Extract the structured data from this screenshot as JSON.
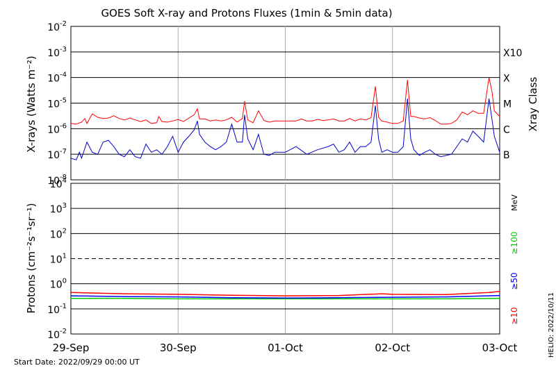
{
  "title": "GOES Soft X-ray and Protons Fluxes   (1min & 5min data)",
  "start_date": "Start Date: 2022/09/29 00:00 UT",
  "footer_tag": "HELIO: 2022/10/11",
  "x_ticks": [
    "29-Sep",
    "30-Sep",
    "01-Oct",
    "02-Oct",
    "03-Oct"
  ],
  "xray_panel": {
    "ylabel": "X-rays (Watts m⁻²)",
    "right_label": "Xray Class",
    "y_ticks": [
      {
        "base": "10",
        "exp": "-2"
      },
      {
        "base": "10",
        "exp": "-3"
      },
      {
        "base": "10",
        "exp": "-4"
      },
      {
        "base": "10",
        "exp": "-5"
      },
      {
        "base": "10",
        "exp": "-6"
      },
      {
        "base": "10",
        "exp": "-7"
      },
      {
        "base": "10",
        "exp": "-8"
      }
    ],
    "classes": [
      "X10",
      "X",
      "M",
      "C",
      "B"
    ]
  },
  "proton_panel": {
    "ylabel": "Protons (cm⁻²s⁻¹sr⁻¹)",
    "y_ticks": [
      {
        "base": "10",
        "exp": "4"
      },
      {
        "base": "10",
        "exp": "3"
      },
      {
        "base": "10",
        "exp": "2"
      },
      {
        "base": "10",
        "exp": "1"
      },
      {
        "base": "10",
        "exp": "0"
      },
      {
        "base": "10",
        "exp": "-1"
      },
      {
        "base": "10",
        "exp": "-2"
      }
    ],
    "unit_label": "MeV",
    "energy_labels": [
      {
        "text": "≥100",
        "color": "#00cc00"
      },
      {
        "text": "≥50",
        "color": "#0000ff"
      },
      {
        "text": "≥10",
        "color": "#ff0000"
      }
    ]
  },
  "colors": {
    "xray_long": "#ff0000",
    "xray_short": "#0000cc",
    "proton_10": "#ff0000",
    "proton_50": "#0000ff",
    "proton_100": "#00cc00"
  },
  "chart_data": [
    {
      "type": "line",
      "title": "GOES Soft X-ray and Protons Fluxes   (1min & 5min data)",
      "ylabel": "X-rays (Watts m⁻²)",
      "y_scale": "log",
      "ylim": [
        1e-08,
        0.01
      ],
      "x_ticks": [
        "29-Sep",
        "30-Sep",
        "01-Oct",
        "02-Oct",
        "03-Oct"
      ],
      "xlim_days": [
        0,
        4
      ],
      "grid": true,
      "x_unit": "days since 29-Sep 00:00 UT",
      "series": [
        {
          "name": "xray_long",
          "points": [
            [
              0.0,
              1.6e-06
            ],
            [
              0.05,
              1.5e-06
            ],
            [
              0.1,
              1.8e-06
            ],
            [
              0.13,
              2.5e-06
            ],
            [
              0.15,
              1.6e-06
            ],
            [
              0.2,
              3.8e-06
            ],
            [
              0.25,
              2.8e-06
            ],
            [
              0.3,
              2.5e-06
            ],
            [
              0.35,
              2.6e-06
            ],
            [
              0.4,
              3.2e-06
            ],
            [
              0.45,
              2.5e-06
            ],
            [
              0.5,
              2.2e-06
            ],
            [
              0.55,
              2.6e-06
            ],
            [
              0.6,
              2.2e-06
            ],
            [
              0.65,
              1.9e-06
            ],
            [
              0.7,
              2.2e-06
            ],
            [
              0.75,
              1.6e-06
            ],
            [
              0.8,
              1.7e-06
            ],
            [
              0.82,
              3e-06
            ],
            [
              0.85,
              1.9e-06
            ],
            [
              0.9,
              1.8e-06
            ],
            [
              0.95,
              2e-06
            ],
            [
              1.0,
              2.3e-06
            ],
            [
              1.05,
              1.9e-06
            ],
            [
              1.1,
              2.6e-06
            ],
            [
              1.15,
              3.5e-06
            ],
            [
              1.18,
              6e-06
            ],
            [
              1.2,
              2.4e-06
            ],
            [
              1.25,
              2.4e-06
            ],
            [
              1.3,
              2e-06
            ],
            [
              1.35,
              2.2e-06
            ],
            [
              1.4,
              2e-06
            ],
            [
              1.45,
              2.2e-06
            ],
            [
              1.5,
              2.8e-06
            ],
            [
              1.55,
              1.8e-06
            ],
            [
              1.6,
              2.5e-06
            ],
            [
              1.62,
              1.2e-05
            ],
            [
              1.65,
              2.2e-06
            ],
            [
              1.7,
              1.7e-06
            ],
            [
              1.75,
              5e-06
            ],
            [
              1.8,
              2.1e-06
            ],
            [
              1.85,
              1.8e-06
            ],
            [
              1.9,
              2e-06
            ],
            [
              2.0,
              2e-06
            ],
            [
              2.1,
              2e-06
            ],
            [
              2.15,
              2.4e-06
            ],
            [
              2.2,
              2e-06
            ],
            [
              2.25,
              2e-06
            ],
            [
              2.3,
              2.3e-06
            ],
            [
              2.35,
              2.1e-06
            ],
            [
              2.4,
              2.2e-06
            ],
            [
              2.45,
              2.4e-06
            ],
            [
              2.5,
              2e-06
            ],
            [
              2.55,
              2e-06
            ],
            [
              2.6,
              2.5e-06
            ],
            [
              2.65,
              2e-06
            ],
            [
              2.7,
              2.4e-06
            ],
            [
              2.75,
              2.2e-06
            ],
            [
              2.8,
              2.7e-06
            ],
            [
              2.84,
              4.5e-05
            ],
            [
              2.87,
              2.8e-06
            ],
            [
              2.9,
              2e-06
            ],
            [
              2.95,
              1.8e-06
            ],
            [
              3.0,
              1.6e-06
            ],
            [
              3.05,
              1.6e-06
            ],
            [
              3.1,
              2e-06
            ],
            [
              3.14,
              8e-05
            ],
            [
              3.17,
              3e-06
            ],
            [
              3.2,
              3e-06
            ],
            [
              3.25,
              2.6e-06
            ],
            [
              3.3,
              2.4e-06
            ],
            [
              3.35,
              2.7e-06
            ],
            [
              3.4,
              2.1e-06
            ],
            [
              3.45,
              1.5e-06
            ],
            [
              3.5,
              1.5e-06
            ],
            [
              3.55,
              1.6e-06
            ],
            [
              3.6,
              2.2e-06
            ],
            [
              3.65,
              4.5e-06
            ],
            [
              3.7,
              3.5e-06
            ],
            [
              3.75,
              5e-06
            ],
            [
              3.8,
              4e-06
            ],
            [
              3.85,
              4e-06
            ],
            [
              3.9,
              0.0001
            ],
            [
              3.93,
              2.5e-05
            ],
            [
              3.95,
              5e-06
            ],
            [
              4.0,
              3e-06
            ]
          ]
        },
        {
          "name": "xray_short",
          "points": [
            [
              0.0,
              7e-08
            ],
            [
              0.05,
              6e-08
            ],
            [
              0.08,
              1.2e-07
            ],
            [
              0.1,
              7e-08
            ],
            [
              0.15,
              3e-07
            ],
            [
              0.2,
              1.2e-07
            ],
            [
              0.25,
              1e-07
            ],
            [
              0.3,
              3e-07
            ],
            [
              0.35,
              3.5e-07
            ],
            [
              0.4,
              2e-07
            ],
            [
              0.45,
              1e-07
            ],
            [
              0.5,
              8e-08
            ],
            [
              0.55,
              1.5e-07
            ],
            [
              0.6,
              8e-08
            ],
            [
              0.65,
              7e-08
            ],
            [
              0.7,
              2.5e-07
            ],
            [
              0.75,
              1.2e-07
            ],
            [
              0.8,
              1.5e-07
            ],
            [
              0.85,
              1e-07
            ],
            [
              0.9,
              2e-07
            ],
            [
              0.95,
              5e-07
            ],
            [
              1.0,
              1.2e-07
            ],
            [
              1.05,
              3e-07
            ],
            [
              1.1,
              5e-07
            ],
            [
              1.15,
              9e-07
            ],
            [
              1.18,
              2e-06
            ],
            [
              1.2,
              6e-07
            ],
            [
              1.25,
              3e-07
            ],
            [
              1.3,
              2e-07
            ],
            [
              1.35,
              1.5e-07
            ],
            [
              1.4,
              2e-07
            ],
            [
              1.45,
              3e-07
            ],
            [
              1.5,
              1.5e-06
            ],
            [
              1.55,
              3e-07
            ],
            [
              1.6,
              3e-07
            ],
            [
              1.62,
              3.5e-06
            ],
            [
              1.65,
              4e-07
            ],
            [
              1.7,
              1.5e-07
            ],
            [
              1.75,
              6e-07
            ],
            [
              1.8,
              1e-07
            ],
            [
              1.85,
              9e-08
            ],
            [
              1.9,
              1.2e-07
            ],
            [
              2.0,
              1.2e-07
            ],
            [
              2.1,
              2e-07
            ],
            [
              2.2,
              1e-07
            ],
            [
              2.3,
              1.5e-07
            ],
            [
              2.4,
              2e-07
            ],
            [
              2.45,
              2.5e-07
            ],
            [
              2.5,
              1.2e-07
            ],
            [
              2.55,
              1.5e-07
            ],
            [
              2.6,
              3e-07
            ],
            [
              2.65,
              1.2e-07
            ],
            [
              2.7,
              2e-07
            ],
            [
              2.75,
              2e-07
            ],
            [
              2.8,
              3e-07
            ],
            [
              2.84,
              8e-06
            ],
            [
              2.87,
              4e-07
            ],
            [
              2.9,
              1.2e-07
            ],
            [
              2.95,
              1.5e-07
            ],
            [
              3.0,
              1.2e-07
            ],
            [
              3.05,
              1.2e-07
            ],
            [
              3.1,
              2e-07
            ],
            [
              3.14,
              1.5e-05
            ],
            [
              3.17,
              4e-07
            ],
            [
              3.2,
              1.5e-07
            ],
            [
              3.25,
              9e-08
            ],
            [
              3.3,
              1.2e-07
            ],
            [
              3.35,
              1.5e-07
            ],
            [
              3.4,
              1e-07
            ],
            [
              3.45,
              8e-08
            ],
            [
              3.5,
              9e-08
            ],
            [
              3.55,
              1e-07
            ],
            [
              3.6,
              2e-07
            ],
            [
              3.65,
              4e-07
            ],
            [
              3.7,
              3e-07
            ],
            [
              3.75,
              8e-07
            ],
            [
              3.8,
              5e-07
            ],
            [
              3.85,
              3e-07
            ],
            [
              3.9,
              1.5e-05
            ],
            [
              3.93,
              2e-06
            ],
            [
              3.95,
              5e-07
            ],
            [
              4.0,
              1.2e-07
            ]
          ]
        }
      ]
    },
    {
      "type": "line",
      "ylabel": "Protons (cm⁻²s⁻¹sr⁻¹)",
      "y_scale": "log",
      "ylim": [
        0.01,
        10000
      ],
      "x_ticks": [
        "29-Sep",
        "30-Sep",
        "01-Oct",
        "02-Oct",
        "03-Oct"
      ],
      "xlim_days": [
        0,
        4
      ],
      "grid": true,
      "threshold_line": 10,
      "series": [
        {
          "name": "≥10",
          "points": [
            [
              0.0,
              0.45
            ],
            [
              0.5,
              0.4
            ],
            [
              1.0,
              0.38
            ],
            [
              1.5,
              0.35
            ],
            [
              2.0,
              0.33
            ],
            [
              2.5,
              0.34
            ],
            [
              2.9,
              0.4
            ],
            [
              3.0,
              0.38
            ],
            [
              3.5,
              0.37
            ],
            [
              3.9,
              0.45
            ],
            [
              4.0,
              0.5
            ]
          ]
        },
        {
          "name": "≥50",
          "points": [
            [
              0.0,
              0.33
            ],
            [
              0.5,
              0.31
            ],
            [
              1.0,
              0.3
            ],
            [
              1.5,
              0.28
            ],
            [
              2.0,
              0.27
            ],
            [
              2.5,
              0.28
            ],
            [
              3.0,
              0.29
            ],
            [
              3.5,
              0.3
            ],
            [
              4.0,
              0.34
            ]
          ]
        },
        {
          "name": "≥100",
          "points": [
            [
              0.0,
              0.26
            ],
            [
              0.5,
              0.26
            ],
            [
              1.0,
              0.25
            ],
            [
              1.5,
              0.25
            ],
            [
              2.0,
              0.25
            ],
            [
              2.5,
              0.25
            ],
            [
              3.0,
              0.25
            ],
            [
              3.5,
              0.25
            ],
            [
              4.0,
              0.26
            ]
          ]
        }
      ]
    }
  ]
}
